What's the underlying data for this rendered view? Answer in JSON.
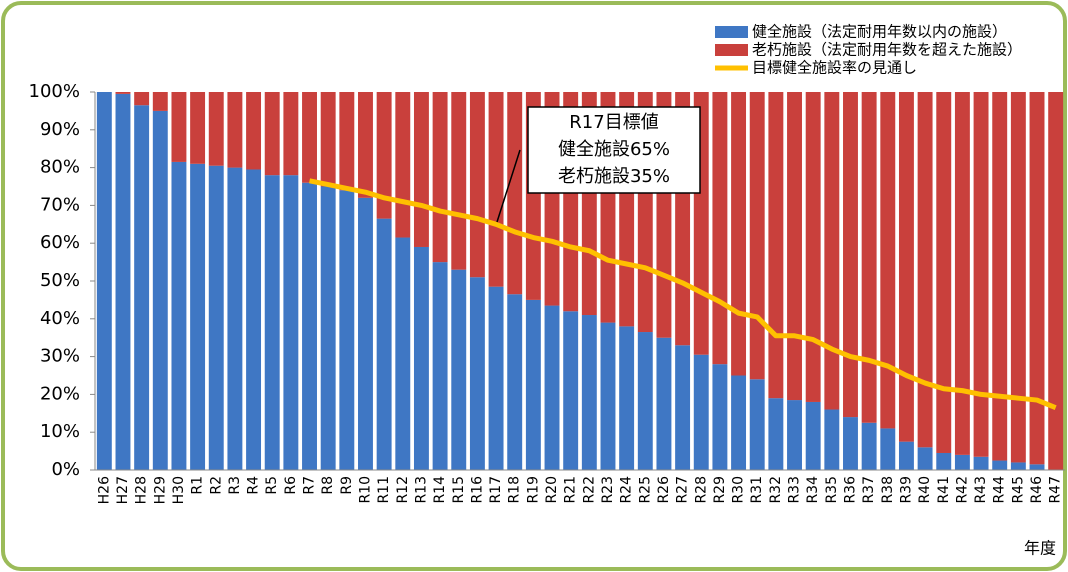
{
  "chart_data": {
    "type": "stacked_bar",
    "categories": [
      "H26",
      "H27",
      "H28",
      "H29",
      "H30",
      "R1",
      "R2",
      "R3",
      "R4",
      "R5",
      "R6",
      "R7",
      "R8",
      "R9",
      "R10",
      "R11",
      "R12",
      "R13",
      "R14",
      "R15",
      "R16",
      "R17",
      "R18",
      "R19",
      "R20",
      "R21",
      "R22",
      "R23",
      "R24",
      "R25",
      "R26",
      "R27",
      "R28",
      "R29",
      "R30",
      "R31",
      "R32",
      "R33",
      "R34",
      "R35",
      "R36",
      "R37",
      "R38",
      "R39",
      "R40",
      "R41",
      "R42",
      "R43",
      "R44",
      "R45",
      "R46",
      "R47"
    ],
    "series": [
      {
        "name": "健全施設（法定耐用年数以内の施設）",
        "color": "#3f77c4",
        "type": "bar",
        "values": [
          100,
          99.5,
          96.5,
          95,
          81.5,
          81,
          80.5,
          80,
          79.5,
          78,
          78,
          76,
          75,
          74,
          72,
          66.5,
          61.5,
          59,
          55,
          53,
          51,
          48.5,
          46.5,
          45,
          43.5,
          42,
          41,
          39,
          38,
          36.5,
          35,
          33,
          30.5,
          28,
          25,
          24,
          19,
          18.5,
          18,
          16,
          14,
          12.5,
          11,
          7.5,
          6,
          4.5,
          4,
          3.5,
          2.5,
          2,
          1.5,
          0
        ]
      },
      {
        "name": "老朽施設（法定耐用年数を超えた施設）",
        "color": "#c9403c",
        "type": "bar",
        "values": [
          0,
          0.5,
          3.5,
          5,
          18.5,
          19,
          19.5,
          20,
          20.5,
          22,
          22,
          24,
          25,
          26,
          28,
          33.5,
          38.5,
          41,
          45,
          47,
          49,
          51.5,
          53.5,
          55,
          56.5,
          58,
          59,
          61,
          62,
          63.5,
          65,
          67,
          69.5,
          72,
          75,
          76,
          81,
          81.5,
          82,
          84,
          86,
          87.5,
          89,
          92.5,
          94,
          95.5,
          96,
          96.5,
          97.5,
          98,
          98.5,
          100
        ]
      },
      {
        "name": "目標健全施設率の見通し",
        "color": "#ffc000",
        "type": "line",
        "values": [
          null,
          null,
          null,
          null,
          null,
          null,
          null,
          null,
          null,
          null,
          null,
          76.5,
          75.5,
          74.5,
          73.5,
          72,
          71,
          70,
          68.5,
          67.5,
          66.5,
          65,
          63,
          61.5,
          60.5,
          59,
          58,
          55.5,
          54.5,
          53.5,
          51.5,
          49.5,
          47,
          44.5,
          41.5,
          40.5,
          35.5,
          35.5,
          34.5,
          32,
          30,
          29,
          27.5,
          25,
          23,
          21.5,
          21,
          20,
          19.5,
          19,
          18.5,
          16.5
        ]
      }
    ],
    "ylim": [
      0,
      100
    ],
    "yticks": [
      {
        "value": 0,
        "label": "0%"
      },
      {
        "value": 10,
        "label": "10%"
      },
      {
        "value": 20,
        "label": "20%"
      },
      {
        "value": 30,
        "label": "30%"
      },
      {
        "value": 40,
        "label": "40%"
      },
      {
        "value": 50,
        "label": "50%"
      },
      {
        "value": 60,
        "label": "60%"
      },
      {
        "value": 70,
        "label": "70%"
      },
      {
        "value": 80,
        "label": "80%"
      },
      {
        "value": 90,
        "label": "90%"
      },
      {
        "value": 100,
        "label": "100%"
      }
    ],
    "xlabel": "年度",
    "annotation": [
      "R17目標値",
      "健全施設65%",
      "老朽施設35%"
    ],
    "legend": "top-right",
    "frame_color": "#9bbb59"
  }
}
